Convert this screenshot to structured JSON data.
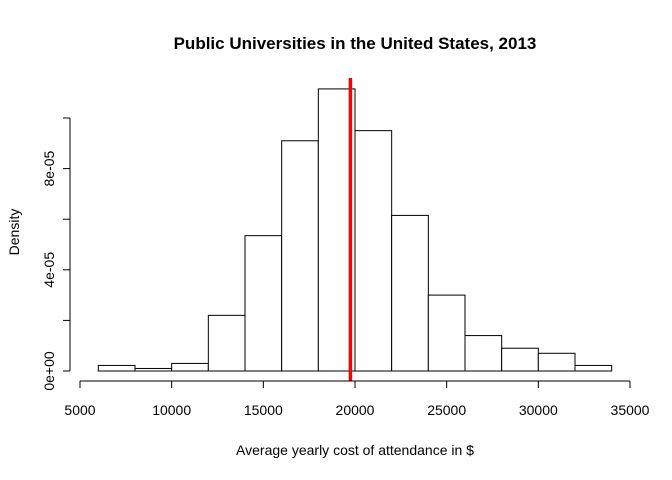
{
  "chart_data": {
    "type": "bar",
    "subtype": "histogram",
    "title": "Public Universities in the United States, 2013",
    "xlabel": "Average yearly cost of attendance in $",
    "ylabel": "Density",
    "xlim": [
      5000,
      35000
    ],
    "ylim": [
      0,
      0.0001
    ],
    "x_ticks": [
      5000,
      10000,
      15000,
      20000,
      25000,
      30000,
      35000
    ],
    "x_tick_labels": [
      "5000",
      "10000",
      "15000",
      "20000",
      "25000",
      "30000",
      "35000"
    ],
    "y_ticks": [
      0,
      2e-05,
      4e-05,
      6e-05,
      8e-05,
      0.0001
    ],
    "y_tick_labels": [
      "0e+00",
      "",
      "4e-05",
      "",
      "8e-05",
      ""
    ],
    "bins": [
      {
        "start": 6000,
        "end": 8000,
        "density": 2.2e-06
      },
      {
        "start": 8000,
        "end": 10000,
        "density": 1e-06
      },
      {
        "start": 10000,
        "end": 12000,
        "density": 3e-06
      },
      {
        "start": 12000,
        "end": 14000,
        "density": 2.2e-05
      },
      {
        "start": 14000,
        "end": 16000,
        "density": 5.35e-05
      },
      {
        "start": 16000,
        "end": 18000,
        "density": 9.1e-05
      },
      {
        "start": 18000,
        "end": 20000,
        "density": 0.0001115
      },
      {
        "start": 20000,
        "end": 22000,
        "density": 9.5e-05
      },
      {
        "start": 22000,
        "end": 24000,
        "density": 6.15e-05
      },
      {
        "start": 24000,
        "end": 26000,
        "density": 3e-05
      },
      {
        "start": 26000,
        "end": 28000,
        "density": 1.4e-05
      },
      {
        "start": 28000,
        "end": 30000,
        "density": 9e-06
      },
      {
        "start": 30000,
        "end": 32000,
        "density": 7e-06
      },
      {
        "start": 32000,
        "end": 34000,
        "density": 2.2e-06
      }
    ],
    "reference_line": {
      "x": 19750,
      "color": "#ff0000"
    },
    "grid": false,
    "legend": "none"
  }
}
